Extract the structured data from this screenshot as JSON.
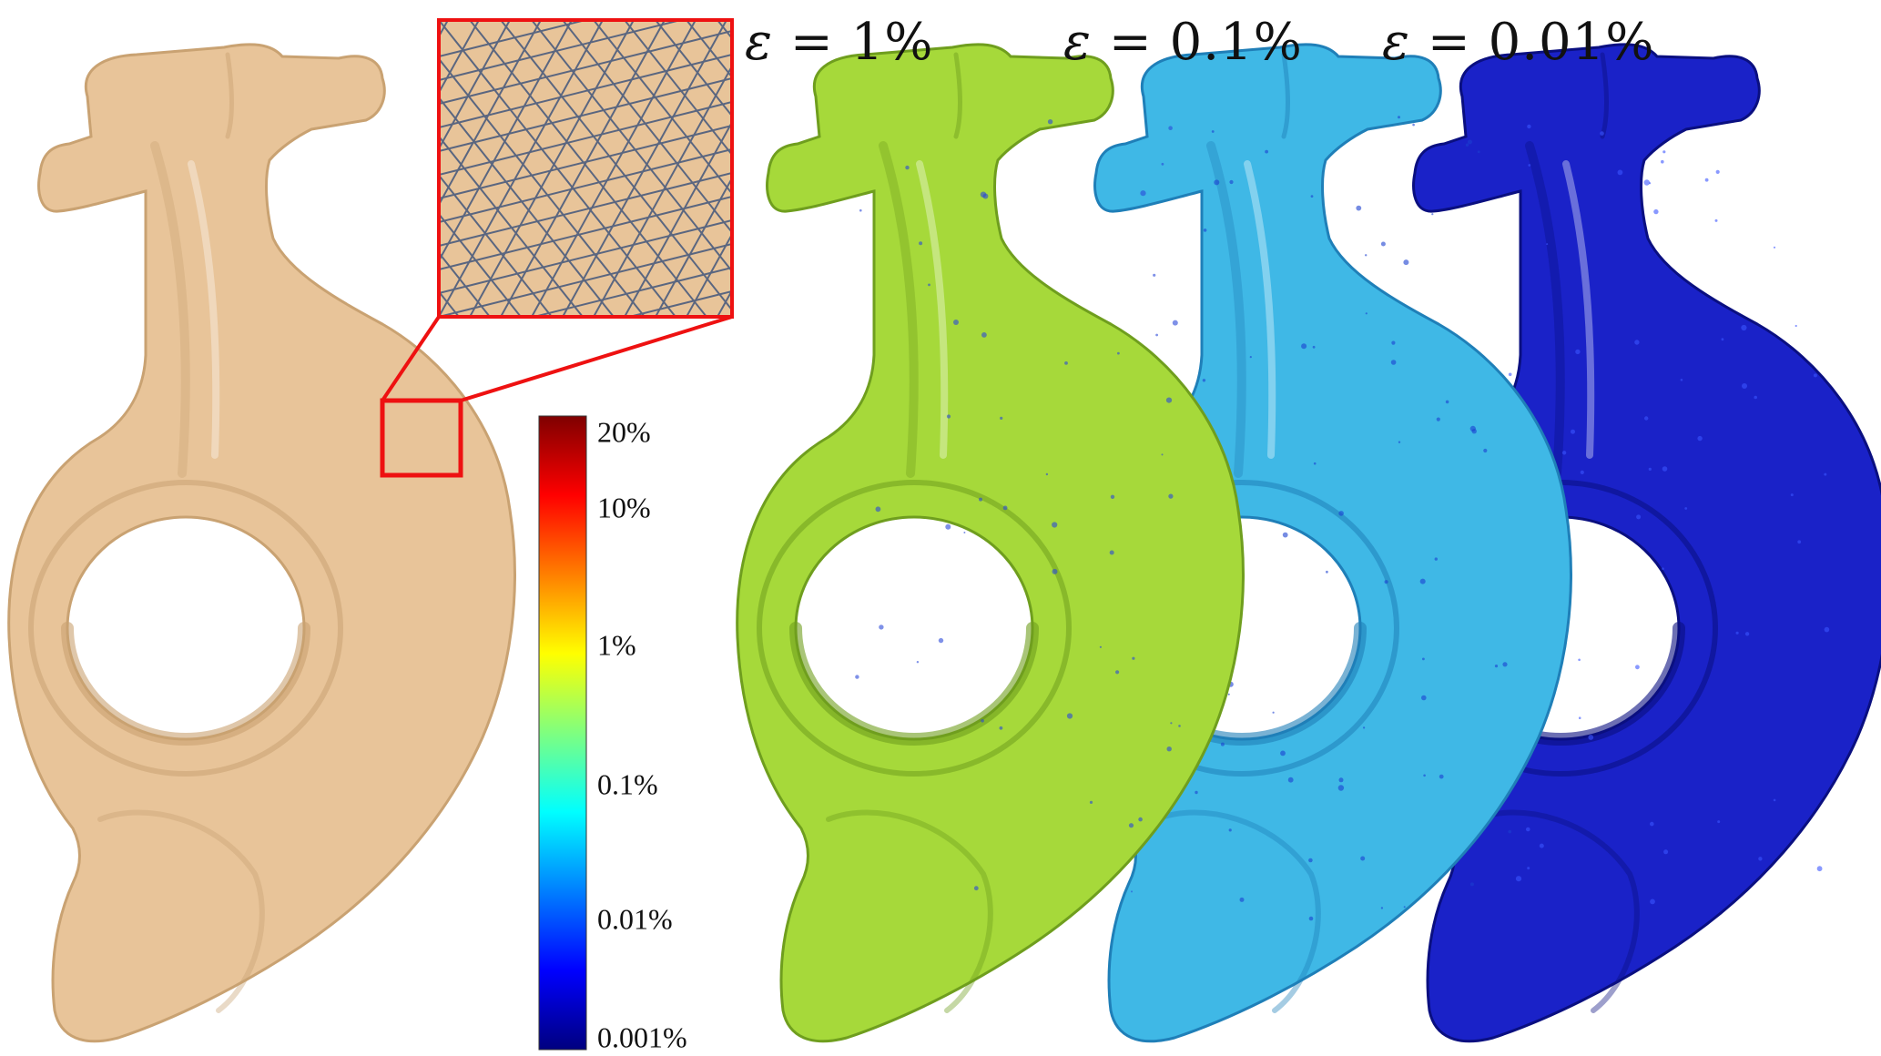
{
  "titles": [
    {
      "symbol": "ε",
      "text": " = 1%"
    },
    {
      "symbol": "ε",
      "text": " = 0.1%"
    },
    {
      "symbol": "ε",
      "text": " = 0.01%"
    }
  ],
  "colorbar": {
    "labels": [
      "20%",
      "10%",
      "1%",
      "0.1%",
      "0.01%",
      "0.001%"
    ],
    "gradient": [
      "#00007f",
      "#0000ff",
      "#007fff",
      "#00ffff",
      "#7fff7f",
      "#ffff00",
      "#ff7f00",
      "#ff0000",
      "#7f0000"
    ]
  },
  "colors": {
    "original": "#e8c499",
    "original_shade": "#c9a272",
    "eps_1": "#a6d93a",
    "eps_1_shade": "#6f9e1e",
    "eps_01": "#3fb8e6",
    "eps_01_shade": "#1f7fb8",
    "eps_001": "#1a22c8",
    "eps_001_shade": "#0a0f80",
    "zoom_frame": "#ee1111",
    "mesh_line": "#5a6680"
  }
}
